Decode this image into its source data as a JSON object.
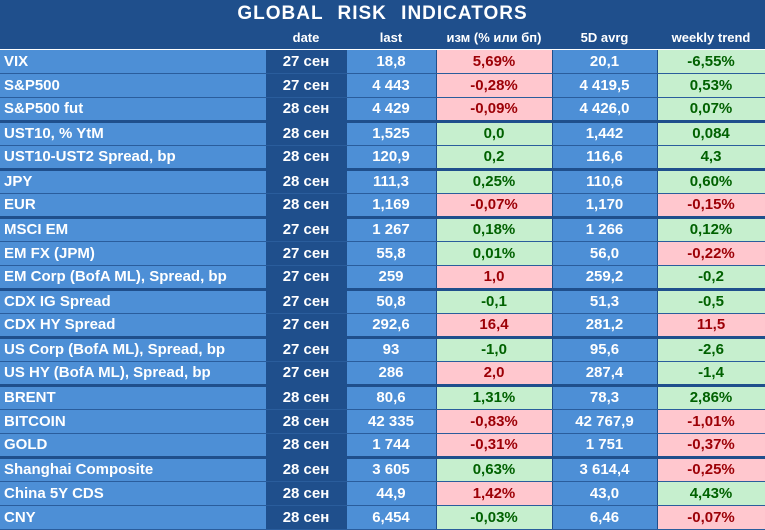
{
  "title": "GLOBAL   RISK   INDICATORS",
  "columns": [
    "",
    "date",
    "last",
    "изм (% или бп)",
    "5D avrg",
    "weekly trend"
  ],
  "colors": {
    "positive_bg": "#c6efce",
    "positive_text": "#006100",
    "negative_bg": "#ffc7ce",
    "negative_text": "#9c0006",
    "header_bg": "#1f4f8c",
    "row_bg": "#4d8fd6"
  },
  "rows": [
    {
      "name": "VIX",
      "date": "27 сен",
      "last": "18,8",
      "chg": "5,69%",
      "chg_sign": "neg",
      "avg": "20,1",
      "trend": "-6,55%",
      "trend_sign": "pos"
    },
    {
      "name": "S&P500",
      "date": "27 сен",
      "last": "4 443",
      "chg": "-0,28%",
      "chg_sign": "neg",
      "avg": "4 419,5",
      "trend": "0,53%",
      "trend_sign": "pos"
    },
    {
      "name": "S&P500 fut",
      "date": "28 сен",
      "last": "4 429",
      "chg": "-0,09%",
      "chg_sign": "neg",
      "avg": "4 426,0",
      "trend": "0,07%",
      "trend_sign": "pos"
    },
    {
      "name": "UST10, % YtM",
      "date": "28 сен",
      "last": "1,525",
      "chg": "0,0",
      "chg_sign": "pos",
      "avg": "1,442",
      "trend": "0,084",
      "trend_sign": "pos"
    },
    {
      "name": "UST10-UST2 Spread, bp",
      "date": "28 сен",
      "last": "120,9",
      "chg": "0,2",
      "chg_sign": "pos",
      "avg": "116,6",
      "trend": "4,3",
      "trend_sign": "pos"
    },
    {
      "name": "JPY",
      "date": "28 сен",
      "last": "111,3",
      "chg": "0,25%",
      "chg_sign": "pos",
      "avg": "110,6",
      "trend": "0,60%",
      "trend_sign": "pos"
    },
    {
      "name": "EUR",
      "date": "28 сен",
      "last": "1,169",
      "chg": "-0,07%",
      "chg_sign": "neg",
      "avg": "1,170",
      "trend": "-0,15%",
      "trend_sign": "neg"
    },
    {
      "name": "MSCI EM",
      "date": "27 сен",
      "last": "1 267",
      "chg": "0,18%",
      "chg_sign": "pos",
      "avg": "1 266",
      "trend": "0,12%",
      "trend_sign": "pos"
    },
    {
      "name": "EM FX (JPM)",
      "date": "27 сен",
      "last": "55,8",
      "chg": "0,01%",
      "chg_sign": "pos",
      "avg": "56,0",
      "trend": "-0,22%",
      "trend_sign": "neg"
    },
    {
      "name": "EM Corp (BofA ML), Spread, bp",
      "date": "27 сен",
      "last": "259",
      "chg": "1,0",
      "chg_sign": "neg",
      "avg": "259,2",
      "trend": "-0,2",
      "trend_sign": "pos"
    },
    {
      "name": "CDX IG Spread",
      "date": "27 сен",
      "last": "50,8",
      "chg": "-0,1",
      "chg_sign": "pos",
      "avg": "51,3",
      "trend": "-0,5",
      "trend_sign": "pos"
    },
    {
      "name": "CDX HY Spread",
      "date": "27 сен",
      "last": "292,6",
      "chg": "16,4",
      "chg_sign": "neg",
      "avg": "281,2",
      "trend": "11,5",
      "trend_sign": "neg"
    },
    {
      "name": "US Corp (BofA ML), Spread, bp",
      "date": "27 сен",
      "last": "93",
      "chg": "-1,0",
      "chg_sign": "pos",
      "avg": "95,6",
      "trend": "-2,6",
      "trend_sign": "pos"
    },
    {
      "name": "US HY (BofA ML), Spread, bp",
      "date": "27 сен",
      "last": "286",
      "chg": "2,0",
      "chg_sign": "neg",
      "avg": "287,4",
      "trend": "-1,4",
      "trend_sign": "pos"
    },
    {
      "name": "BRENT",
      "date": "28 сен",
      "last": "80,6",
      "chg": "1,31%",
      "chg_sign": "pos",
      "avg": "78,3",
      "trend": "2,86%",
      "trend_sign": "pos"
    },
    {
      "name": "BITCOIN",
      "date": "28 сен",
      "last": "42 335",
      "chg": "-0,83%",
      "chg_sign": "neg",
      "avg": "42 767,9",
      "trend": "-1,01%",
      "trend_sign": "neg"
    },
    {
      "name": "GOLD",
      "date": "28 сен",
      "last": "1 744",
      "chg": "-0,31%",
      "chg_sign": "neg",
      "avg": "1 751",
      "trend": "-0,37%",
      "trend_sign": "neg"
    },
    {
      "name": "Shanghai Composite",
      "date": "28 сен",
      "last": "3 605",
      "chg": "0,63%",
      "chg_sign": "pos",
      "avg": "3 614,4",
      "trend": "-0,25%",
      "trend_sign": "neg"
    },
    {
      "name": "China 5Y CDS",
      "date": "28 сен",
      "last": "44,9",
      "chg": "1,42%",
      "chg_sign": "neg",
      "avg": "43,0",
      "trend": "4,43%",
      "trend_sign": "pos"
    },
    {
      "name": "CNY",
      "date": "28 сен",
      "last": "6,454",
      "chg": "-0,03%",
      "chg_sign": "pos",
      "avg": "6,46",
      "trend": "-0,07%",
      "trend_sign": "neg"
    }
  ]
}
